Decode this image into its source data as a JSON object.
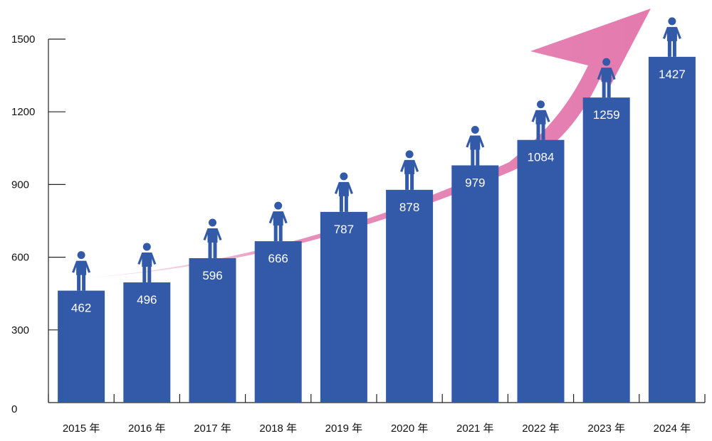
{
  "chart_data": {
    "type": "bar",
    "title": "",
    "xlabel": "",
    "ylabel": "",
    "categories": [
      "2015 年",
      "2016 年",
      "2017 年",
      "2018 年",
      "2019 年",
      "2020 年",
      "2021 年",
      "2022 年",
      "2023 年",
      "2024 年"
    ],
    "values": [
      462,
      496,
      596,
      666,
      787,
      878,
      979,
      1084,
      1259,
      1427
    ],
    "value_labels": [
      "462",
      "496",
      "596",
      "666",
      "787",
      "878",
      "979",
      "1084",
      "1259",
      "1427"
    ],
    "ylim": [
      0,
      1500
    ],
    "yticks": [
      0,
      300,
      600,
      900,
      1200,
      1500
    ],
    "ytick_labels": [
      "0",
      "300",
      "600",
      "900",
      "1200",
      "1500"
    ],
    "grid": false,
    "legend": "none",
    "bar_icon": "person-icon",
    "trend_arrow": "growth-arrow-icon",
    "colors": {
      "bar": "#335aa8",
      "icon": "#335aa8",
      "arrow": "#e47aae",
      "axis": "#222222"
    }
  }
}
